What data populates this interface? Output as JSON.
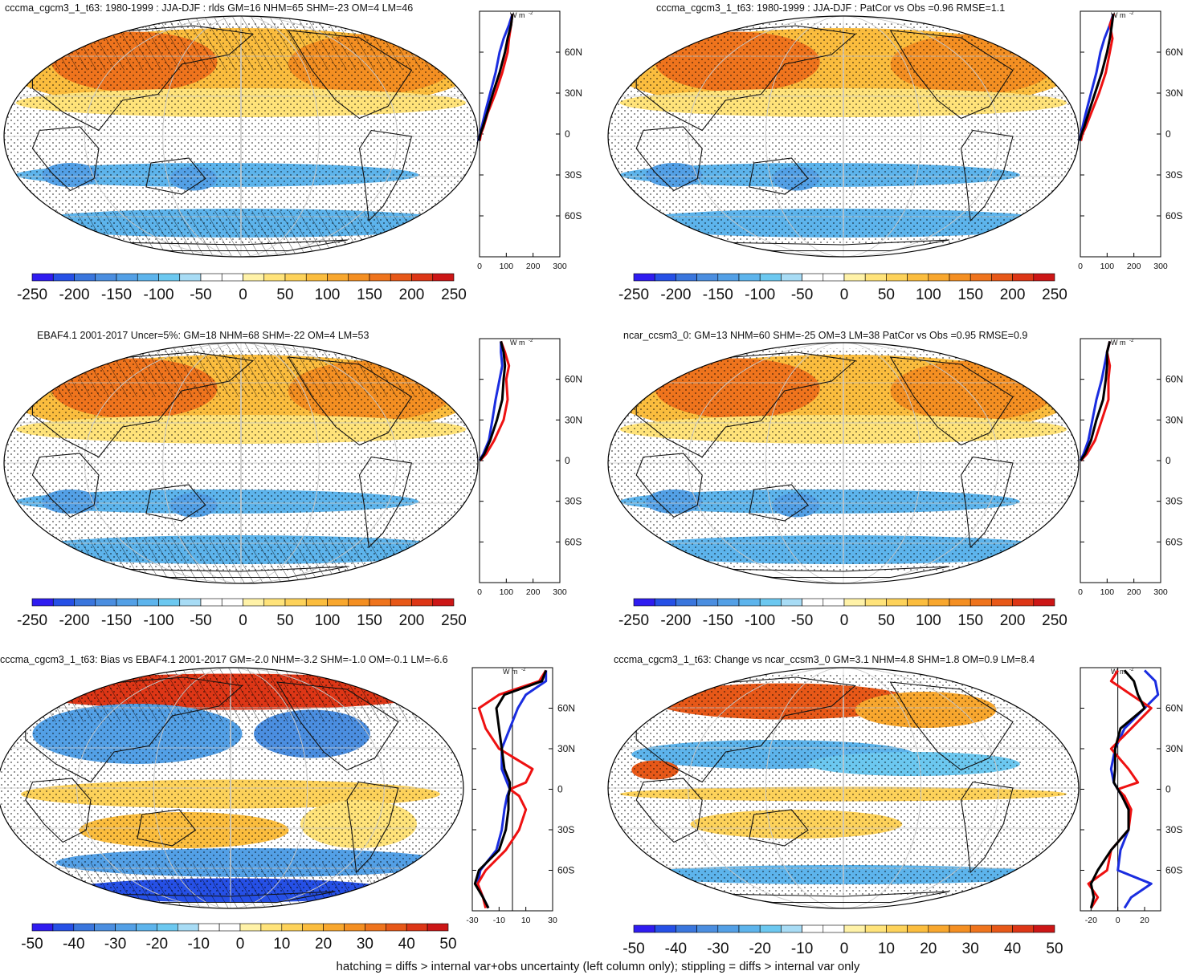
{
  "figure": {
    "footer_note": "hatching = diffs > internal var+obs uncertainty (left column only); stippling = diffs > internal var only",
    "units_label": "W m",
    "units_exponent": "-2"
  },
  "colors": {
    "palette": [
      "#2f1cf0",
      "#2650e6",
      "#3a76dd",
      "#4b8ee0",
      "#53a0e6",
      "#5db4ec",
      "#6cc8f0",
      "#a8dcf5",
      "#ffffff",
      "#ffffff",
      "#fff2a8",
      "#ffe37a",
      "#fdd25a",
      "#fbbd3e",
      "#f8a72e",
      "#f48f22",
      "#ef741d",
      "#e75818",
      "#dd3616",
      "#cc1616"
    ],
    "zonal_red": "#ee1111",
    "zonal_blue": "#1a2de0",
    "zonal_black": "#000000",
    "graticule": "#c8c8c8",
    "coast": "#111111"
  },
  "chart_data": [
    {
      "id": "panel-model-climatology",
      "type": "map-with-zonal-mean",
      "title": "cccma_cgcm3_1_t63: 1980-1999 : JJA-DJF : rlds GM=16 NHM=65 SHM=-23 OM=4 LM=46",
      "hatching": true,
      "stippling": true,
      "colorbar_ticks": [
        "-250",
        "-200",
        "-150",
        "-100",
        "-50",
        "0",
        "50",
        "100",
        "150",
        "200",
        "250"
      ],
      "colorbar_range": [
        -250,
        250
      ],
      "lat_ticks": [
        "60N",
        "30N",
        "0",
        "30S",
        "60S"
      ],
      "lat_tick_values": [
        60,
        30,
        0,
        -30,
        -60
      ],
      "zonal_x_ticks": [
        "0",
        "100",
        "200",
        "300"
      ],
      "zonal_x_range": [
        0,
        300
      ],
      "zonal_series": {
        "lat": [
          -88,
          -70,
          -60,
          -45,
          -30,
          -15,
          -5,
          0,
          5,
          15,
          30,
          45,
          60,
          70,
          80,
          88
        ],
        "model": [
          null,
          null,
          null,
          null,
          null,
          null,
          1,
          5,
          15,
          30,
          60,
          85,
          105,
          110,
          118,
          123
        ],
        "obs": [
          null,
          null,
          null,
          null,
          null,
          null,
          -2,
          3,
          12,
          28,
          50,
          75,
          95,
          105,
          118,
          123
        ],
        "other": [
          null,
          null,
          null,
          null,
          null,
          null,
          -4,
          2,
          8,
          20,
          40,
          60,
          75,
          90,
          110,
          123
        ]
      }
    },
    {
      "id": "panel-model2-climatology",
      "type": "map-with-zonal-mean",
      "title": "cccma_cgcm3_1_t63: 1980-1999 : JJA-DJF : PatCor vs Obs =0.96 RMSE=1.1",
      "hatching": false,
      "stippling": true,
      "colorbar_ticks": [
        "-250",
        "-200",
        "-150",
        "-100",
        "-50",
        "0",
        "50",
        "100",
        "150",
        "200",
        "250"
      ],
      "colorbar_range": [
        -250,
        250
      ],
      "lat_ticks": [
        "60N",
        "30N",
        "0",
        "30S",
        "60S"
      ],
      "lat_tick_values": [
        60,
        30,
        0,
        -30,
        -60
      ],
      "zonal_x_ticks": [
        "0",
        "100",
        "200",
        "300"
      ],
      "zonal_x_range": [
        0,
        300
      ],
      "zonal_series": {
        "lat": [
          -88,
          -70,
          -60,
          -45,
          -30,
          -15,
          -5,
          0,
          5,
          15,
          30,
          45,
          60,
          70,
          80,
          88
        ],
        "model": [
          null,
          null,
          null,
          null,
          null,
          null,
          2,
          8,
          20,
          40,
          70,
          95,
          110,
          120,
          110,
          125
        ],
        "obs": [
          null,
          null,
          null,
          null,
          null,
          null,
          -2,
          4,
          14,
          30,
          55,
          80,
          100,
          110,
          118,
          123
        ],
        "other": [
          null,
          null,
          null,
          null,
          null,
          null,
          -3,
          2,
          8,
          20,
          40,
          60,
          75,
          90,
          110,
          123
        ]
      }
    },
    {
      "id": "panel-observations",
      "type": "map-with-zonal-mean",
      "title": "EBAF4.1 2001-2017 Uncer=5%: GM=18 NHM=68 SHM=-22 OM=4 LM=53",
      "hatching": true,
      "stippling": true,
      "colorbar_ticks": [
        "-250",
        "-200",
        "-150",
        "-100",
        "-50",
        "0",
        "50",
        "100",
        "150",
        "200",
        "250"
      ],
      "colorbar_range": [
        -250,
        250
      ],
      "lat_ticks": [
        "60N",
        "30N",
        "0",
        "30S",
        "60S"
      ],
      "lat_tick_values": [
        60,
        30,
        0,
        -30,
        -60
      ],
      "zonal_x_ticks": [
        "0",
        "100",
        "200",
        "300"
      ],
      "zonal_x_range": [
        0,
        300
      ],
      "zonal_series": {
        "lat": [
          -88,
          -70,
          -60,
          -45,
          -30,
          -15,
          -5,
          0,
          5,
          15,
          30,
          45,
          60,
          70,
          80,
          88
        ],
        "model": [
          null,
          null,
          null,
          null,
          null,
          null,
          null,
          2,
          25,
          55,
          90,
          105,
          100,
          110,
          95,
          80
        ],
        "obs": [
          null,
          null,
          null,
          null,
          null,
          null,
          null,
          1,
          18,
          40,
          65,
          85,
          90,
          95,
          90,
          80
        ],
        "other": [
          null,
          null,
          null,
          null,
          null,
          null,
          null,
          0,
          14,
          35,
          48,
          60,
          75,
          85,
          80,
          80
        ]
      }
    },
    {
      "id": "panel-other-model",
      "type": "map-with-zonal-mean",
      "title": "ncar_ccsm3_0: GM=13 NHM=60 SHM=-25 OM=3 LM=38 PatCor vs Obs =0.95 RMSE=0.9",
      "hatching": false,
      "stippling": true,
      "colorbar_ticks": [
        "-250",
        "-200",
        "-150",
        "-100",
        "-50",
        "0",
        "50",
        "100",
        "150",
        "200",
        "250"
      ],
      "colorbar_range": [
        -250,
        250
      ],
      "lat_ticks": [
        "60N",
        "30N",
        "0",
        "30S",
        "60S"
      ],
      "lat_tick_values": [
        60,
        30,
        0,
        -30,
        -60
      ],
      "zonal_x_ticks": [
        "0",
        "100",
        "200",
        "300"
      ],
      "zonal_x_range": [
        0,
        300
      ],
      "zonal_series": {
        "lat": [
          -88,
          -70,
          -60,
          -45,
          -30,
          -15,
          -5,
          0,
          5,
          15,
          30,
          45,
          60,
          70,
          80,
          88
        ],
        "model": [
          null,
          null,
          null,
          null,
          null,
          null,
          null,
          2,
          25,
          55,
          80,
          105,
          105,
          110,
          100,
          110
        ],
        "obs": [
          null,
          null,
          null,
          null,
          null,
          null,
          null,
          1,
          18,
          40,
          60,
          85,
          95,
          100,
          100,
          110
        ],
        "other": [
          null,
          null,
          null,
          null,
          null,
          null,
          null,
          0,
          12,
          30,
          45,
          60,
          80,
          90,
          100,
          110
        ]
      }
    },
    {
      "id": "panel-bias",
      "type": "map-with-zonal-mean",
      "title": "cccma_cgcm3_1_t63: Bias vs EBAF4.1 2001-2017 GM=-2.0 NHM=-3.2 SHM=-1.0 OM=-0.1 LM=-6.6",
      "hatching": true,
      "stippling": true,
      "colorbar_ticks": [
        "-50",
        "-40",
        "-30",
        "-20",
        "-10",
        "0",
        "10",
        "20",
        "30",
        "40",
        "50"
      ],
      "colorbar_range": [
        -50,
        50
      ],
      "lat_ticks": [
        "60N",
        "30N",
        "0",
        "30S",
        "60S"
      ],
      "lat_tick_values": [
        60,
        30,
        0,
        -30,
        -60
      ],
      "zonal_x_ticks": [
        "-30",
        "-10",
        "10",
        "30"
      ],
      "zonal_x_range": [
        -30,
        30
      ],
      "zonal_series": {
        "lat": [
          -88,
          -80,
          -70,
          -60,
          -45,
          -30,
          -15,
          -5,
          0,
          5,
          15,
          30,
          45,
          60,
          70,
          80,
          88
        ],
        "model": [
          -20,
          -22,
          -26,
          -20,
          -5,
          5,
          10,
          5,
          -2,
          10,
          15,
          -10,
          -20,
          -25,
          -10,
          20,
          25
        ],
        "obs": [
          -18,
          -22,
          -28,
          -25,
          -10,
          -5,
          -3,
          -3,
          -2,
          -2,
          -6,
          -8,
          -10,
          -12,
          -6,
          22,
          25
        ],
        "other": [
          -18,
          -22,
          -26,
          -24,
          -12,
          -8,
          -6,
          -4,
          -2,
          -4,
          -8,
          -8,
          -2,
          4,
          10,
          25,
          25
        ]
      }
    },
    {
      "id": "panel-change",
      "type": "map-with-zonal-mean",
      "title": "cccma_cgcm3_1_t63: Change vs ncar_ccsm3_0 GM=3.1 NHM=4.8 SHM=1.8 OM=0.9 LM=8.4",
      "hatching": false,
      "stippling": true,
      "colorbar_ticks": [
        "-50",
        "-40",
        "-30",
        "-20",
        "-10",
        "0",
        "10",
        "20",
        "30",
        "40",
        "50"
      ],
      "colorbar_range": [
        -50,
        50
      ],
      "lat_ticks": [
        "60N",
        "30N",
        "0",
        "30S",
        "60S"
      ],
      "lat_tick_values": [
        60,
        30,
        0,
        -30,
        -60
      ],
      "zonal_x_ticks": [
        "-20",
        "0",
        "20"
      ],
      "zonal_x_range": [
        -28,
        32
      ],
      "zonal_series": {
        "lat": [
          -88,
          -80,
          -70,
          -60,
          -45,
          -30,
          -15,
          -5,
          0,
          5,
          15,
          30,
          45,
          60,
          70,
          80,
          88
        ],
        "model": [
          -20,
          -15,
          -22,
          -8,
          -5,
          8,
          10,
          5,
          0,
          15,
          8,
          -5,
          10,
          25,
          10,
          -5,
          0
        ],
        "obs": [
          -20,
          -18,
          -20,
          -15,
          -5,
          8,
          8,
          3,
          0,
          -3,
          -2,
          -2,
          2,
          20,
          15,
          12,
          5
        ],
        "other": [
          5,
          10,
          25,
          0,
          2,
          8,
          9,
          3,
          0,
          -3,
          -5,
          -2,
          5,
          20,
          30,
          28,
          20
        ]
      }
    }
  ]
}
